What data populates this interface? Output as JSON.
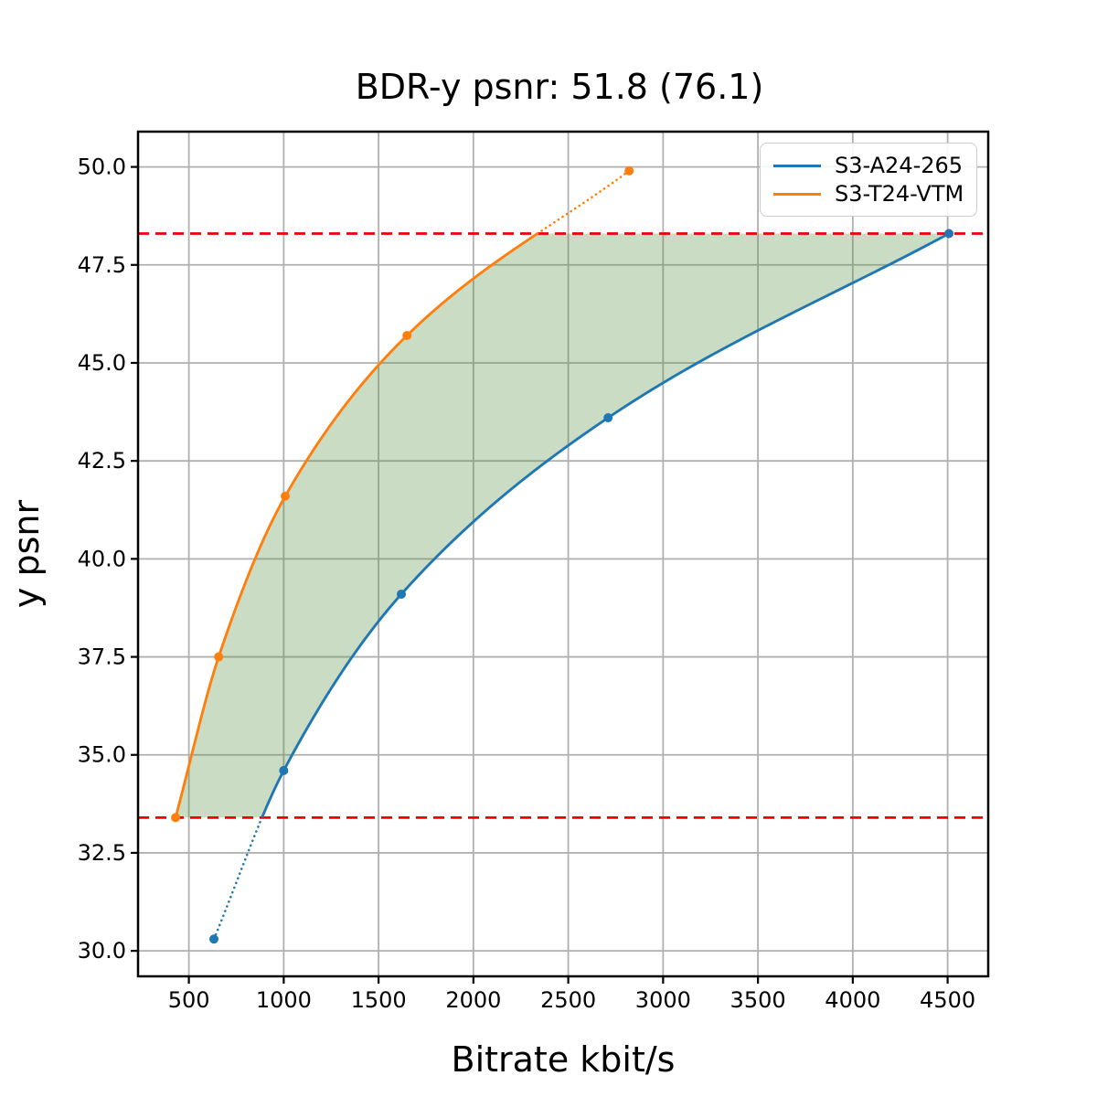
{
  "chart_data": {
    "type": "line",
    "title": "BDR-y psnr: 51.8 (76.1)",
    "xlabel": "Bitrate kbit/s",
    "ylabel": "y psnr",
    "xlim": [
      232,
      4714
    ],
    "ylim": [
      29.35,
      50.9
    ],
    "x_ticks": [
      500,
      1000,
      1500,
      2000,
      2500,
      3000,
      3500,
      4000,
      4500
    ],
    "y_ticks": [
      30.0,
      32.5,
      35.0,
      37.5,
      40.0,
      42.5,
      45.0,
      47.5,
      50.0
    ],
    "grid": true,
    "grid_color": "#b0b0b0",
    "legend_position": "upper right",
    "series": [
      {
        "name": "S3-A24-265",
        "color": "#1f77b4",
        "points": [
          [
            632,
            30.3
          ],
          [
            1000,
            34.6
          ],
          [
            1620,
            39.1
          ],
          [
            2710,
            43.6
          ],
          [
            4507,
            48.3
          ]
        ]
      },
      {
        "name": "S3-T24-VTM",
        "color": "#ff7f0e",
        "points": [
          [
            430,
            33.4
          ],
          [
            657,
            37.5
          ],
          [
            1008,
            41.6
          ],
          [
            1650,
            45.7
          ],
          [
            2821,
            49.9
          ]
        ]
      }
    ],
    "overlap_region": {
      "upper_psnr": 48.3,
      "lower_psnr": 33.4,
      "boundary_line_color": "#ee0000",
      "boundary_line_style": "dashed",
      "fill_color": "#508c3c",
      "fill_opacity": 0.3,
      "out_of_overlap_line_style": "dotted",
      "description": "shaded area between the two curves within the overlapping psnr range"
    }
  }
}
